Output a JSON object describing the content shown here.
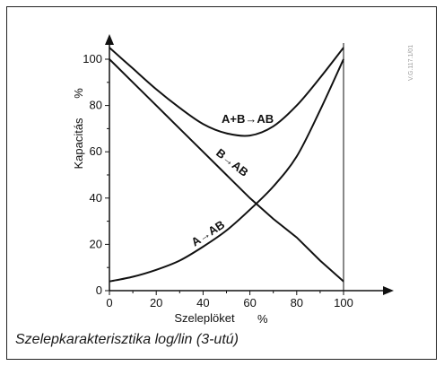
{
  "chart_data": {
    "type": "line",
    "xlabel": "Szeleplöket",
    "xlabel_unit": "%",
    "ylabel": "Kapacitás",
    "ylabel_unit": "%",
    "xlim": [
      0,
      100
    ],
    "ylim": [
      0,
      110
    ],
    "x_ticks": [
      0,
      20,
      40,
      60,
      80,
      100
    ],
    "y_ticks": [
      0,
      20,
      40,
      60,
      80,
      100
    ],
    "grid": false,
    "series": [
      {
        "name": "A+B→AB",
        "x": [
          0,
          10,
          20,
          30,
          40,
          50,
          60,
          70,
          80,
          90,
          100
        ],
        "values": [
          105,
          96,
          87,
          79,
          72,
          68,
          67,
          71,
          80,
          92,
          105
        ]
      },
      {
        "name": "B→AB",
        "x": [
          0,
          10,
          20,
          30,
          40,
          50,
          60,
          70,
          80,
          90,
          100
        ],
        "values": [
          100,
          90,
          80,
          70,
          60,
          50,
          40,
          31,
          23,
          13,
          4
        ]
      },
      {
        "name": "A→AB",
        "x": [
          0,
          10,
          20,
          30,
          40,
          50,
          60,
          70,
          80,
          90,
          100
        ],
        "values": [
          4,
          6,
          9,
          13,
          19,
          26,
          35,
          45,
          58,
          78,
          100
        ]
      }
    ]
  },
  "side_code": "V.G.117.1/01",
  "caption": "Szelepkarakterisztika log/lin (3-utú)"
}
